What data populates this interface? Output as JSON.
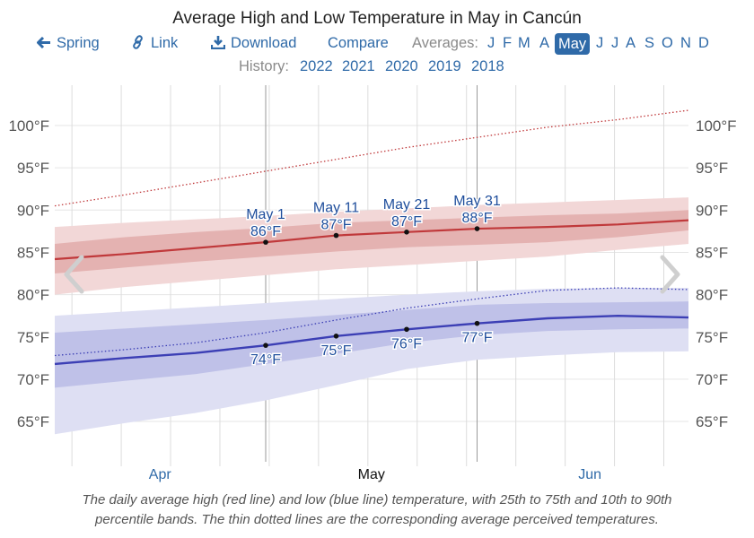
{
  "title": "Average High and Low Temperature in May in Cancún",
  "toolbar": {
    "spring_label": "Spring",
    "link_label": "Link",
    "download_label": "Download",
    "compare_label": "Compare",
    "averages_label": "Averages:",
    "months": [
      "J",
      "F",
      "M",
      "A",
      "May",
      "J",
      "J",
      "A",
      "S",
      "O",
      "N",
      "D"
    ],
    "active_month_index": 4
  },
  "history": {
    "label": "History:",
    "years": [
      "2022",
      "2021",
      "2020",
      "2019",
      "2018"
    ]
  },
  "icons": {
    "spring": "arrow-left-icon",
    "link": "link-icon",
    "download": "download-icon",
    "prev": "chevron-left-icon",
    "next": "chevron-right-icon"
  },
  "caption_line1": "The daily average high (red line) and low (blue line) temperature, with 25th to 75th and 10th to 90th",
  "caption_line2": "percentile bands. The thin dotted lines are the corresponding average perceived temperatures.",
  "colors": {
    "high_line": "#c0393b",
    "low_line": "#3c3fb5",
    "accent": "#2f6aa8",
    "annotation": "#1f4e9c"
  },
  "chart_data": {
    "type": "line",
    "title": "Average High and Low Temperature in May in Cancún",
    "xlabel": "",
    "ylabel": "",
    "ylim": [
      62,
      102
    ],
    "yticks": [
      65,
      70,
      75,
      80,
      85,
      90,
      95,
      100
    ],
    "ytick_labels": [
      "65°F",
      "70°F",
      "75°F",
      "80°F",
      "85°F",
      "90°F",
      "95°F",
      "100°F"
    ],
    "x_day_offsets": [
      -30,
      -20,
      -10,
      0,
      10,
      20,
      30,
      40,
      50,
      60
    ],
    "month_labels": [
      {
        "label": "Apr",
        "day_offset": -15,
        "highlight": false
      },
      {
        "label": "May",
        "day_offset": 15,
        "highlight": true
      },
      {
        "label": "Jun",
        "day_offset": 46,
        "highlight": false
      }
    ],
    "x_range_days": [
      -30,
      59
    ],
    "series": [
      {
        "name": "Average high",
        "values": [
          84.2,
          84.8,
          85.5,
          86.2,
          87.0,
          87.4,
          87.8,
          88.0,
          88.3,
          88.8
        ]
      },
      {
        "name": "High 25th-75th lower",
        "values": [
          82.5,
          83.2,
          83.9,
          84.5,
          85.1,
          85.6,
          85.9,
          86.2,
          86.8,
          87.6
        ]
      },
      {
        "name": "High 25th-75th upper",
        "values": [
          86.0,
          86.8,
          87.4,
          87.9,
          88.5,
          88.8,
          89.1,
          89.4,
          89.6,
          90.0
        ]
      },
      {
        "name": "High 10th-90th lower",
        "values": [
          80.0,
          80.9,
          81.6,
          82.3,
          83.0,
          83.5,
          84.0,
          84.5,
          85.3,
          86.0
        ]
      },
      {
        "name": "High 10th-90th upper",
        "values": [
          88.0,
          88.5,
          88.9,
          89.3,
          89.8,
          90.2,
          90.6,
          90.9,
          91.2,
          91.5
        ]
      },
      {
        "name": "Perceived high",
        "values": [
          90.5,
          91.8,
          93.2,
          94.6,
          96.0,
          97.4,
          98.6,
          99.8,
          100.7,
          101.8
        ]
      },
      {
        "name": "Average low",
        "values": [
          71.8,
          72.5,
          73.1,
          74.0,
          75.1,
          75.9,
          76.6,
          77.2,
          77.5,
          77.3
        ]
      },
      {
        "name": "Low 25th-75th lower",
        "values": [
          69.0,
          69.8,
          70.6,
          71.8,
          73.0,
          74.3,
          75.2,
          75.7,
          75.9,
          76.0
        ]
      },
      {
        "name": "Low 25th-75th upper",
        "values": [
          75.5,
          76.0,
          76.5,
          77.0,
          77.6,
          78.2,
          78.8,
          79.0,
          79.1,
          79.2
        ]
      },
      {
        "name": "Low 10th-90th lower",
        "values": [
          63.5,
          64.8,
          66.0,
          67.5,
          69.3,
          71.2,
          72.3,
          72.8,
          73.2,
          73.3
        ]
      },
      {
        "name": "Low 10th-90th upper",
        "values": [
          77.5,
          78.0,
          78.5,
          79.0,
          79.5,
          80.0,
          80.4,
          80.7,
          80.8,
          80.8
        ]
      },
      {
        "name": "Perceived low",
        "values": [
          72.8,
          73.5,
          74.3,
          75.5,
          77.0,
          78.4,
          79.5,
          80.5,
          80.8,
          80.6
        ]
      }
    ],
    "annotations": [
      {
        "date": "May 1",
        "day_offset": 0,
        "high": "86°F",
        "high_value": 86.2,
        "low": "74°F",
        "low_value": 74.0
      },
      {
        "date": "May 11",
        "day_offset": 10,
        "high": "87°F",
        "high_value": 87.0,
        "low": "75°F",
        "low_value": 75.1
      },
      {
        "date": "May 21",
        "day_offset": 20,
        "high": "87°F",
        "high_value": 87.4,
        "low": "76°F",
        "low_value": 75.9
      },
      {
        "date": "May 31",
        "day_offset": 30,
        "high": "88°F",
        "high_value": 87.8,
        "low": "77°F",
        "low_value": 76.6
      }
    ],
    "grid": true,
    "legend": "none"
  }
}
